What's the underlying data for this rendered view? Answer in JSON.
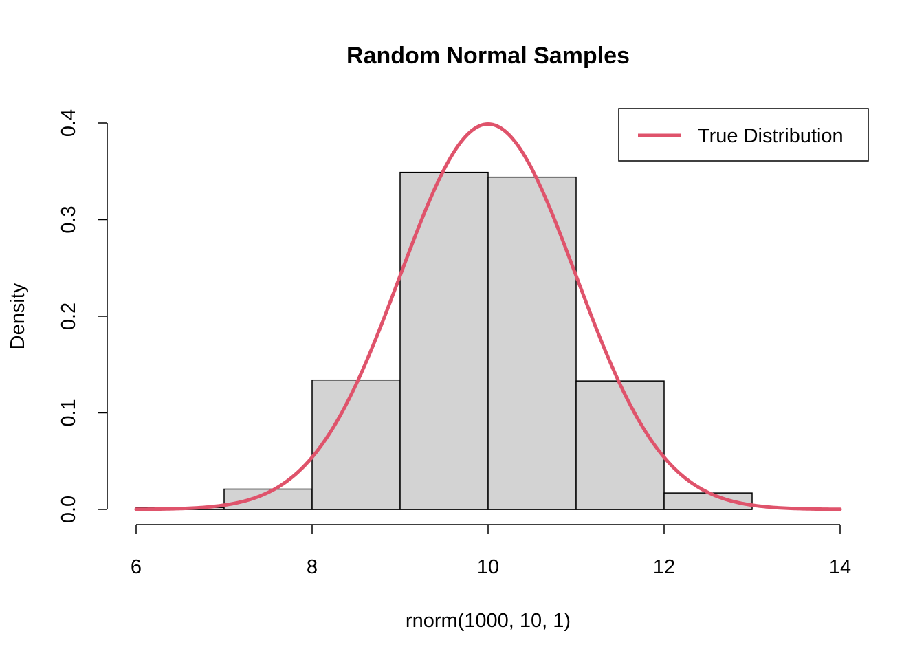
{
  "chart_data": {
    "type": "bar",
    "title": "Random Normal Samples",
    "xlabel": "rnorm(1000, 10, 1)",
    "ylabel": "Density",
    "xlim": [
      6,
      14
    ],
    "ylim": [
      0,
      0.4
    ],
    "x_ticks": [
      "6",
      "8",
      "10",
      "12",
      "14"
    ],
    "y_ticks": [
      "0.0",
      "0.1",
      "0.2",
      "0.3",
      "0.4"
    ],
    "bins": [
      {
        "x0": 6,
        "x1": 7,
        "density": 0.002
      },
      {
        "x0": 7,
        "x1": 8,
        "density": 0.021
      },
      {
        "x0": 8,
        "x1": 9,
        "density": 0.134
      },
      {
        "x0": 9,
        "x1": 10,
        "density": 0.349
      },
      {
        "x0": 10,
        "x1": 11,
        "density": 0.344
      },
      {
        "x0": 11,
        "x1": 12,
        "density": 0.133
      },
      {
        "x0": 12,
        "x1": 13,
        "density": 0.017
      }
    ],
    "curve": {
      "name": "True Distribution",
      "distribution": "normal",
      "mean": 10,
      "sd": 1,
      "color": "#DF536B"
    },
    "bar_fill": "#D3D3D3",
    "legend": {
      "position": "top-right",
      "entries": [
        "True Distribution"
      ]
    }
  }
}
